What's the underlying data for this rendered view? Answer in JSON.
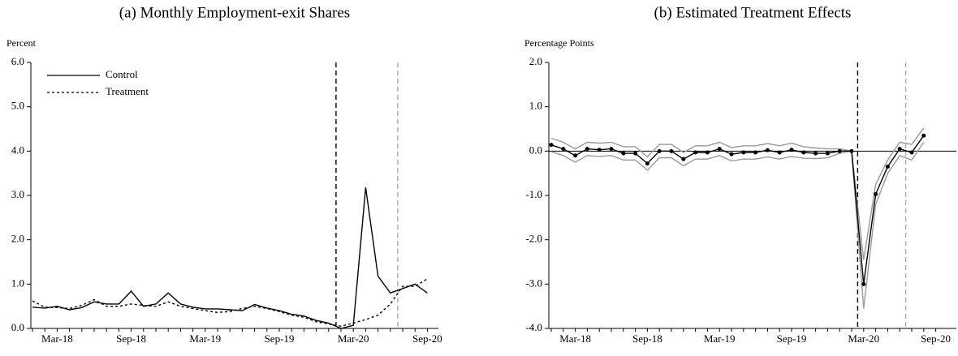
{
  "chart_data": [
    {
      "type": "line",
      "title": "(a) Monthly Employment-exit Shares",
      "y_label": "Percent",
      "categories": [
        null,
        null,
        "Mar-18",
        null,
        null,
        null,
        null,
        null,
        "Sep-18",
        null,
        null,
        null,
        null,
        null,
        "Mar-19",
        null,
        null,
        null,
        null,
        null,
        "Sep-19",
        null,
        null,
        null,
        null,
        null,
        "Mar-20",
        null,
        null,
        null,
        null,
        null,
        "Sep-20"
      ],
      "series": [
        {
          "name": "Control",
          "color": "#000000",
          "dash": false,
          "values": [
            0.48,
            0.46,
            0.5,
            0.42,
            0.47,
            0.6,
            0.55,
            0.55,
            0.84,
            0.5,
            0.55,
            0.8,
            0.55,
            0.48,
            0.44,
            0.44,
            0.42,
            0.4,
            0.54,
            0.46,
            0.4,
            0.32,
            0.28,
            0.18,
            0.12,
            0.0,
            0.07,
            3.18,
            1.18,
            0.8,
            0.9,
            1.0,
            0.8
          ]
        },
        {
          "name": "Treatment",
          "color": "#000000",
          "dash": true,
          "values": [
            0.62,
            0.48,
            0.47,
            0.45,
            0.52,
            0.65,
            0.5,
            0.5,
            0.55,
            0.52,
            0.5,
            0.6,
            0.5,
            0.45,
            0.4,
            0.36,
            0.38,
            0.45,
            0.5,
            0.45,
            0.38,
            0.3,
            0.25,
            0.15,
            0.1,
            0.05,
            0.12,
            0.2,
            0.3,
            0.55,
            0.95,
            0.95,
            1.12
          ]
        }
      ],
      "ylim": [
        0,
        6
      ],
      "yticks": [
        {
          "value": 0,
          "label": "0.0"
        },
        {
          "value": 1,
          "label": "1.0"
        },
        {
          "value": 2,
          "label": "2.0"
        },
        {
          "value": 3,
          "label": "3.0"
        },
        {
          "value": 4,
          "label": "4.0"
        },
        {
          "value": 5,
          "label": "5.0"
        },
        {
          "value": 6,
          "label": "6.0"
        }
      ],
      "vlines": [
        {
          "x": 24.6,
          "color": "#000000"
        },
        {
          "x": 29.6,
          "color": "#aaaaaa"
        }
      ],
      "legend": "upper left",
      "zero_line": false
    },
    {
      "type": "line",
      "title": "(b) Estimated Treatment Effects",
      "y_label": "Percentage Points",
      "categories": [
        null,
        null,
        "Mar-18",
        null,
        null,
        null,
        null,
        null,
        "Sep-18",
        null,
        null,
        null,
        null,
        null,
        "Mar-19",
        null,
        null,
        null,
        null,
        null,
        "Sep-19",
        null,
        null,
        null,
        null,
        null,
        "Mar-20",
        null,
        null,
        null,
        null,
        null,
        "Sep-20"
      ],
      "series": [
        {
          "color": "#999999",
          "dash": false,
          "marker": false,
          "values": [
            0.29,
            0.2,
            0.05,
            0.2,
            0.18,
            0.2,
            0.1,
            0.1,
            -0.13,
            0.15,
            0.15,
            -0.03,
            0.12,
            0.12,
            0.2,
            0.08,
            0.12,
            0.12,
            0.17,
            0.12,
            0.18,
            0.1,
            0.07,
            0.05,
            0.05,
            0.0,
            -2.45,
            -0.75,
            -0.2,
            0.2,
            0.15,
            0.52,
            null
          ]
        },
        {
          "color": "#999999",
          "dash": false,
          "marker": false,
          "values": [
            -0.01,
            -0.1,
            -0.25,
            -0.1,
            -0.12,
            -0.1,
            -0.2,
            -0.2,
            -0.43,
            -0.15,
            -0.15,
            -0.33,
            -0.18,
            -0.18,
            -0.1,
            -0.22,
            -0.18,
            -0.18,
            -0.13,
            -0.18,
            -0.12,
            -0.16,
            -0.17,
            -0.15,
            -0.05,
            0.0,
            -3.55,
            -1.2,
            -0.5,
            -0.1,
            -0.2,
            0.2,
            null
          ]
        },
        {
          "color": "#000000",
          "dash": false,
          "marker": true,
          "values": [
            0.14,
            0.05,
            -0.1,
            0.05,
            0.03,
            0.05,
            -0.05,
            -0.05,
            -0.28,
            0.0,
            0.0,
            -0.18,
            -0.03,
            -0.03,
            0.05,
            -0.07,
            -0.03,
            -0.03,
            0.02,
            -0.03,
            0.03,
            -0.03,
            -0.05,
            -0.05,
            0.0,
            0.0,
            -3.0,
            -0.97,
            -0.35,
            0.05,
            -0.03,
            0.35,
            null
          ]
        }
      ],
      "ylim": [
        -4,
        2
      ],
      "yticks": [
        {
          "value": -4,
          "label": "-4.0"
        },
        {
          "value": -3,
          "label": "-3.0"
        },
        {
          "value": -2,
          "label": "-2.0"
        },
        {
          "value": -1,
          "label": "-1.0"
        },
        {
          "value": 0,
          "label": "0.0"
        },
        {
          "value": 1,
          "label": "1.0"
        },
        {
          "value": 2,
          "label": "2.0"
        }
      ],
      "vlines": [
        {
          "x": 25.5,
          "color": "#000000"
        },
        {
          "x": 29.5,
          "color": "#aaaaaa"
        }
      ],
      "zero_line": true
    }
  ]
}
